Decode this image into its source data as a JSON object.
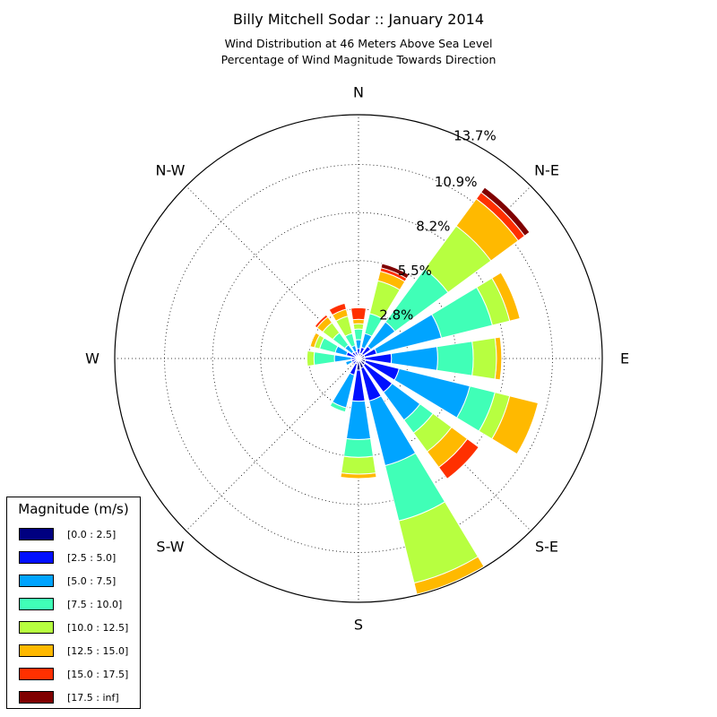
{
  "chart_data": {
    "type": "windrose",
    "title": "Billy Mitchell Sodar :: January 2014",
    "subtitle_lines": [
      "Wind Distribution at 46 Meters Above Sea Level",
      "Percentage of Wind Magnitude Towards Direction"
    ],
    "direction_labels": [
      "N",
      "N-E",
      "E",
      "S-E",
      "S",
      "S-W",
      "W",
      "N-W"
    ],
    "radial_ticks": [
      2.8,
      5.5,
      8.2,
      10.9,
      13.7
    ],
    "radial_tick_labels": [
      "2.8%",
      "5.5%",
      "8.2%",
      "10.9%",
      "13.7%"
    ],
    "rmax": 13.7,
    "legend_title": "Magnitude (m/s)",
    "bins": [
      {
        "label": "[0.0 : 2.5]",
        "color": "#000080"
      },
      {
        "label": "[2.5 : 5.0]",
        "color": "#0010ff"
      },
      {
        "label": "[5.0 : 7.5]",
        "color": "#00a4ff"
      },
      {
        "label": "[7.5 : 10.0]",
        "color": "#40ffb7"
      },
      {
        "label": "[10.0 : 12.5]",
        "color": "#b7ff40"
      },
      {
        "label": "[12.5 : 15.0]",
        "color": "#ffb900"
      },
      {
        "label": "[15.0 : 17.5]",
        "color": "#ff3000"
      },
      {
        "label": "[17.5 : inf]",
        "color": "#800000"
      }
    ],
    "directions": [
      0,
      22.5,
      45,
      67.5,
      90,
      112.5,
      135,
      157.5,
      180,
      202.5,
      225,
      247.5,
      270,
      292.5,
      315,
      337.5
    ],
    "cumulative": [
      [
        0.25,
        0.55,
        1.05,
        1.65,
        1.95,
        2.2,
        2.85,
        2.85
      ],
      [
        0.3,
        0.65,
        1.45,
        2.6,
        4.5,
        5.05,
        5.25,
        5.5
      ],
      [
        0.3,
        0.85,
        2.55,
        6.25,
        9.25,
        11.15,
        11.6,
        11.95
      ],
      [
        0.35,
        1.05,
        4.8,
        7.75,
        8.75,
        9.35,
        9.35,
        9.35
      ],
      [
        0.35,
        1.85,
        4.45,
        6.45,
        7.75,
        8.05,
        8.05,
        8.05
      ],
      [
        0.4,
        2.35,
        6.45,
        7.9,
        8.75,
        10.4,
        10.45,
        10.5
      ],
      [
        0.45,
        2.35,
        4.3,
        5.2,
        6.5,
        7.6,
        8.4,
        8.4
      ],
      [
        0.55,
        2.45,
        6.2,
        9.4,
        13.0,
        13.65,
        13.65,
        13.65
      ],
      [
        0.65,
        2.4,
        4.55,
        5.55,
        6.5,
        6.75,
        6.75,
        6.75
      ],
      [
        0.3,
        0.95,
        2.85,
        3.1,
        3.1,
        3.1,
        3.1,
        3.1
      ],
      [
        0.15,
        0.4,
        0.4,
        0.4,
        0.4,
        0.4,
        0.4,
        0.4
      ],
      [
        0.15,
        0.4,
        0.75,
        0.75,
        0.75,
        0.75,
        0.75,
        0.75
      ],
      [
        0.1,
        0.4,
        1.35,
        2.5,
        2.9,
        2.9,
        2.9,
        2.9
      ],
      [
        0.15,
        0.7,
        1.35,
        2.25,
        2.55,
        2.8,
        2.8,
        2.8
      ],
      [
        0.15,
        0.45,
        0.95,
        1.8,
        2.5,
        2.9,
        3.05,
        3.05
      ],
      [
        0.15,
        0.4,
        0.75,
        1.45,
        2.45,
        2.85,
        3.2,
        3.2
      ]
    ]
  }
}
